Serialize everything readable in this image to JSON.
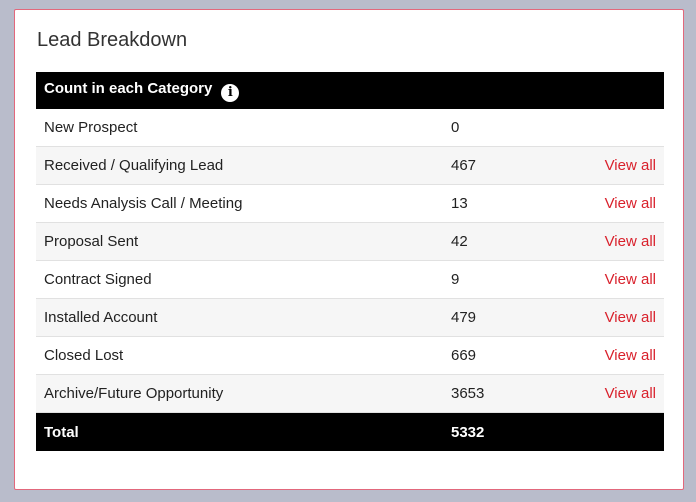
{
  "panel": {
    "title": "Lead Breakdown"
  },
  "table": {
    "header": {
      "label": "Count in each Category",
      "info_icon": "info-icon"
    },
    "rows": [
      {
        "category": "New Prospect",
        "count": "0",
        "link": ""
      },
      {
        "category": "Received / Qualifying Lead",
        "count": "467",
        "link": "View all"
      },
      {
        "category": "Needs Analysis Call / Meeting",
        "count": "13",
        "link": "View all"
      },
      {
        "category": "Proposal Sent",
        "count": "42",
        "link": "View all"
      },
      {
        "category": "Contract Signed",
        "count": "9",
        "link": "View all"
      },
      {
        "category": "Installed Account",
        "count": "479",
        "link": "View all"
      },
      {
        "category": "Closed Lost",
        "count": "669",
        "link": "View all"
      },
      {
        "category": "Archive/Future Opportunity",
        "count": "3653",
        "link": "View all"
      }
    ],
    "footer": {
      "label": "Total",
      "count": "5332"
    }
  },
  "colors": {
    "header_bg": "#000000",
    "link": "#d9212c",
    "panel_border": "#e2687c",
    "page_bg": "#b9bccb"
  }
}
